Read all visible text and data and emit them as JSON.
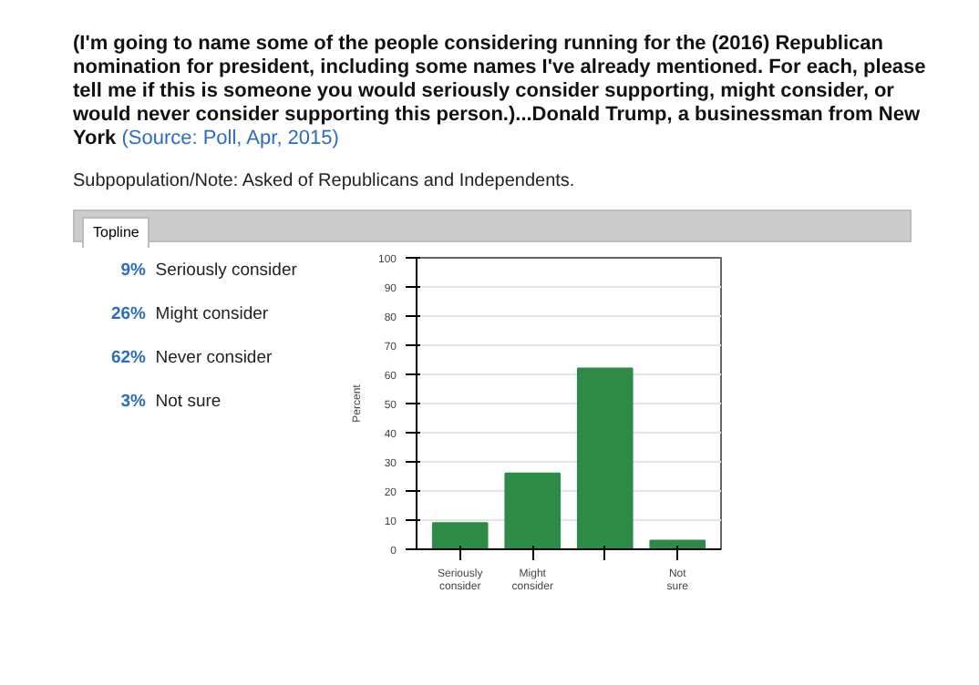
{
  "chart_data": {
    "type": "bar",
    "title": "(I'm going to name some of the people considering running for the (2016) Republican nomination for president, including some names I've already mentioned. For each, please tell me if this is someone you would seriously consider supporting, might consider, or would never consider supporting this person.)...Donald Trump, a businessman from New York",
    "subtitle": "Subpopulation/Note: Asked of Republicans and Independents.",
    "annotations": [
      "(Source: Poll, Apr, 2015)",
      "Topline",
      "9%",
      "Seriously consider",
      "26%",
      "Might consider",
      "62%",
      "Never consider",
      "3%",
      "Not sure"
    ],
    "categories": [
      "Seriously consider",
      "Might consider",
      null,
      "Not sure"
    ],
    "values": [
      9,
      26,
      62,
      3
    ],
    "color": "#2e8b47",
    "ylabel": "Percent",
    "ylim": [
      0,
      100
    ],
    "yticks": [
      0,
      10,
      20,
      30,
      40,
      50,
      60,
      70,
      80,
      90,
      100
    ],
    "grid": "y"
  }
}
